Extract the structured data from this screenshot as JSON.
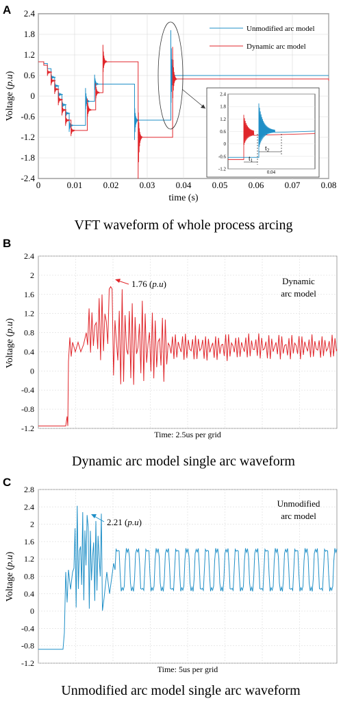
{
  "panels": {
    "a": {
      "letter": "A",
      "caption": "VFT waveform of whole process arcing",
      "ylabel_prefix": "Voltage (",
      "ylabel_unit": "p.u",
      "ylabel_suffix": ")",
      "xlabel": "time (s)",
      "legend": [
        {
          "name": "Unmodified arc model",
          "color": "#1f8fc7"
        },
        {
          "name": "Dynamic arc model",
          "color": "#e0262b"
        }
      ],
      "inset": {
        "yticks": [
          "2.4",
          "1.8",
          "1.2",
          "0.6",
          "0",
          "-0.6",
          "-1.2"
        ],
        "xtick": "0.04",
        "t1": "t",
        "t1_sub": "1",
        "t2": "t",
        "t2_sub": "2"
      }
    },
    "b": {
      "letter": "B",
      "caption": "Dynamic arc model single arc waveform",
      "ylabel_prefix": "Voltage (",
      "ylabel_unit": "p.u",
      "ylabel_suffix": ")",
      "xlabel": "Time: 2.5us per grid",
      "model_label_line1": "Dynamic",
      "model_label_line2": "arc model",
      "peak_value": "1.76",
      "peak_unit": "p.u",
      "color": "#e0262b"
    },
    "c": {
      "letter": "C",
      "caption": "Unmodified arc model single arc waveform",
      "ylabel_prefix": "Voltage (",
      "ylabel_unit": "p.u",
      "ylabel_suffix": ")",
      "xlabel": "Time: 5us per grid",
      "model_label_line1": "Unmodified",
      "model_label_line2": "arc model",
      "peak_value": "2.21",
      "peak_unit": "p.u",
      "color": "#1f8fc7"
    }
  },
  "chart_data": [
    {
      "type": "line",
      "xlim": [
        0,
        0.08
      ],
      "ylim": [
        -2.4,
        2.4
      ],
      "x_ticks": [
        "0",
        "0.01",
        "0.02",
        "0.03",
        "0.04",
        "0.05",
        "0.06",
        "0.07",
        "0.08"
      ],
      "y_ticks": [
        "2.4",
        "1.8",
        "1.2",
        "0.6",
        "0",
        "-0.6",
        "-1.2",
        "-1.8",
        "-2.4"
      ],
      "grid": true,
      "legend_position": "top-right",
      "series": [
        {
          "name": "Unmodified arc model",
          "steps": [
            [
              0,
              1.0
            ],
            [
              0.0015,
              0.95
            ],
            [
              0.0025,
              0.8
            ],
            [
              0.0035,
              0.55
            ],
            [
              0.0045,
              0.3
            ],
            [
              0.0055,
              0.05
            ],
            [
              0.0065,
              -0.25
            ],
            [
              0.0075,
              -0.5
            ],
            [
              0.0085,
              -0.85
            ],
            [
              0.0115,
              -0.85
            ],
            [
              0.013,
              -0.15
            ],
            [
              0.0155,
              0.35
            ],
            [
              0.0245,
              0.35
            ],
            [
              0.0265,
              -0.7
            ],
            [
              0.0345,
              -0.7
            ],
            [
              0.0365,
              0.6
            ],
            [
              0.08,
              0.6
            ]
          ],
          "spike_peak": 1.92
        },
        {
          "name": "Dynamic arc model",
          "steps": [
            [
              0,
              1.0
            ],
            [
              0.0015,
              0.9
            ],
            [
              0.0025,
              0.7
            ],
            [
              0.0035,
              0.45
            ],
            [
              0.0045,
              0.2
            ],
            [
              0.0055,
              -0.1
            ],
            [
              0.0065,
              -0.4
            ],
            [
              0.0075,
              -0.7
            ],
            [
              0.009,
              -1.0
            ],
            [
              0.012,
              -1.0
            ],
            [
              0.0135,
              -0.4
            ],
            [
              0.0158,
              0.1
            ],
            [
              0.0178,
              1.0
            ],
            [
              0.025,
              1.0
            ],
            [
              0.0275,
              -1.2
            ],
            [
              0.036,
              -1.2
            ],
            [
              0.037,
              0.5
            ],
            [
              0.08,
              0.45
            ]
          ]
        }
      ]
    },
    {
      "type": "line",
      "series_name": "Dynamic arc model",
      "y_ticks": [
        "2.4",
        "2",
        "1.6",
        "1.2",
        "0.8",
        "0.4",
        "0",
        "-0.4",
        "-0.8",
        "-1.2"
      ],
      "ylim": [
        -1.2,
        2.4
      ],
      "grid": true,
      "x_unit_per_grid_us": 2.5,
      "initial_value": -1.15,
      "peak": 1.76,
      "steady_state_mean": 0.5
    },
    {
      "type": "line",
      "series_name": "Unmodified arc model",
      "y_ticks": [
        "2.8",
        "2.4",
        "2",
        "1.6",
        "1.2",
        "0.8",
        "0.4",
        "0",
        "-0.4",
        "-0.8",
        "-1.2"
      ],
      "ylim": [
        -1.2,
        2.8
      ],
      "grid": true,
      "x_unit_per_grid_us": 5,
      "initial_value": -0.88,
      "peak": 2.21,
      "steady_state_mean": 0.95
    }
  ]
}
